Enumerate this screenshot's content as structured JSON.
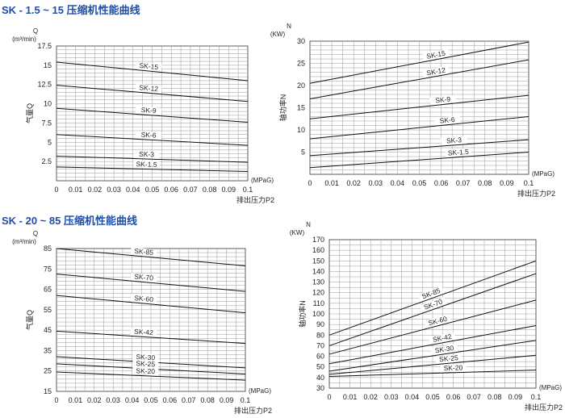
{
  "titles": {
    "top": "SK - 1.5 ~ 15 压缩机性能曲线",
    "bottom": "SK - 20 ~ 85 压缩机性能曲线"
  },
  "chart_data": [
    {
      "type": "line",
      "id": "q_small",
      "x_ticks": [
        "0",
        "0.01",
        "0.02",
        "0.03",
        "0.04",
        "0.05",
        "0.06",
        "0.07",
        "0.08",
        "0.09",
        "0.1"
      ],
      "y_ticks": [
        "2.5",
        "5",
        "7.5",
        "10",
        "12.5",
        "15",
        "17.5"
      ],
      "xlim": [
        0,
        0.1
      ],
      "ylim": [
        0,
        17.5
      ],
      "y_unit": "Q",
      "y_unit2": "(m³/min)",
      "ylabel": "气量Q",
      "x_unit": "(MPaG)",
      "xlabel": "排出压力P2",
      "grid": true,
      "series": [
        {
          "name": "SK-15",
          "x": [
            0,
            0.1
          ],
          "y": [
            15.4,
            13.0
          ],
          "label_at": 0.048
        },
        {
          "name": "SK-12",
          "x": [
            0,
            0.1
          ],
          "y": [
            12.4,
            10.3
          ],
          "label_at": 0.048
        },
        {
          "name": "SK-9",
          "x": [
            0,
            0.1
          ],
          "y": [
            9.4,
            7.6
          ],
          "label_at": 0.048
        },
        {
          "name": "SK-6",
          "x": [
            0,
            0.1
          ],
          "y": [
            6.0,
            4.6
          ],
          "label_at": 0.048
        },
        {
          "name": "SK-3",
          "x": [
            0,
            0.1
          ],
          "y": [
            3.2,
            2.4
          ],
          "label_at": 0.047
        },
        {
          "name": "SK-1.5",
          "x": [
            0,
            0.1
          ],
          "y": [
            1.8,
            1.2
          ],
          "label_at": 0.047
        }
      ]
    },
    {
      "type": "line",
      "id": "n_small",
      "x_ticks": [
        "0",
        "0.01",
        "0.02",
        "0.03",
        "0.04",
        "0.05",
        "0.06",
        "0.07",
        "0.08",
        "0.09",
        "0.1"
      ],
      "y_ticks": [
        "5",
        "10",
        "15",
        "20",
        "25",
        "30"
      ],
      "xlim": [
        0,
        0.1
      ],
      "ylim": [
        0,
        30
      ],
      "y_unit": "N",
      "y_unit2": "(KW)",
      "ylabel": "轴功率N",
      "x_unit": "(MPaG)",
      "xlabel": "排出压力P2",
      "grid": true,
      "series": [
        {
          "name": "SK-15",
          "x": [
            0,
            0.1
          ],
          "y": [
            20.5,
            29.8
          ],
          "label_at": 0.058
        },
        {
          "name": "SK-12",
          "x": [
            0,
            0.1
          ],
          "y": [
            17.0,
            25.8
          ],
          "label_at": 0.058
        },
        {
          "name": "SK-9",
          "x": [
            0,
            0.1
          ],
          "y": [
            12.5,
            17.8
          ],
          "label_at": 0.061
        },
        {
          "name": "SK-6",
          "x": [
            0,
            0.1
          ],
          "y": [
            8.0,
            13.0
          ],
          "label_at": 0.063
        },
        {
          "name": "SK-3",
          "x": [
            0,
            0.1
          ],
          "y": [
            4.2,
            7.8
          ],
          "label_at": 0.066
        },
        {
          "name": "SK-1.5",
          "x": [
            0,
            0.1
          ],
          "y": [
            1.5,
            5.0
          ],
          "label_at": 0.068
        }
      ]
    },
    {
      "type": "line",
      "id": "q_large",
      "x_ticks": [
        "0",
        "0.01",
        "0.02",
        "0.03",
        "0.04",
        "0.05",
        "0.06",
        "0.07",
        "0.08",
        "0.09",
        "0.1"
      ],
      "y_ticks": [
        "15",
        "25",
        "35",
        "45",
        "55",
        "65",
        "75",
        "85"
      ],
      "xlim": [
        0,
        0.1
      ],
      "ylim": [
        15,
        85
      ],
      "y_unit": "Q",
      "y_unit2": "(m³/min)",
      "ylabel": "气量Q",
      "x_unit": "(MPaG)",
      "xlabel": "排出压力P2",
      "grid": true,
      "series": [
        {
          "name": "SK-85",
          "x": [
            0,
            0.1
          ],
          "y": [
            85.0,
            76.5
          ],
          "label_at": 0.046
        },
        {
          "name": "SK-70",
          "x": [
            0,
            0.1
          ],
          "y": [
            72.5,
            64.0
          ],
          "label_at": 0.046
        },
        {
          "name": "SK-60",
          "x": [
            0,
            0.1
          ],
          "y": [
            62.0,
            53.5
          ],
          "label_at": 0.046
        },
        {
          "name": "SK-42",
          "x": [
            0,
            0.1
          ],
          "y": [
            44.5,
            38.5
          ],
          "label_at": 0.046
        },
        {
          "name": "SK-30",
          "x": [
            0,
            0.1
          ],
          "y": [
            32.0,
            26.5
          ],
          "label_at": 0.047
        },
        {
          "name": "SK-25",
          "x": [
            0,
            0.1
          ],
          "y": [
            28.5,
            23.5
          ],
          "label_at": 0.047
        },
        {
          "name": "SK-20",
          "x": [
            0,
            0.1
          ],
          "y": [
            24.5,
            20.5
          ],
          "label_at": 0.047
        }
      ]
    },
    {
      "type": "line",
      "id": "n_large",
      "x_ticks": [
        "0",
        "0.01",
        "0.02",
        "0.03",
        "0.04",
        "0.05",
        "0.06",
        "0.07",
        "0.08",
        "0.09",
        "0.1"
      ],
      "y_ticks": [
        "30",
        "40",
        "50",
        "60",
        "70",
        "80",
        "90",
        "100",
        "110",
        "120",
        "130",
        "140",
        "150",
        "160",
        "170"
      ],
      "xlim": [
        0,
        0.1
      ],
      "ylim": [
        30,
        170
      ],
      "y_unit": "N",
      "y_unit2": "(KW)",
      "ylabel": "轴功率N",
      "x_unit": "(MPaG)",
      "xlabel": "排出压力P2",
      "grid": true,
      "series": [
        {
          "name": "SK-85",
          "x": [
            0,
            0.1
          ],
          "y": [
            80.0,
            150.0
          ],
          "label_at": 0.05
        },
        {
          "name": "SK-70",
          "x": [
            0,
            0.1
          ],
          "y": [
            70.0,
            138.0
          ],
          "label_at": 0.051
        },
        {
          "name": "SK-60",
          "x": [
            0,
            0.1
          ],
          "y": [
            62.0,
            113.0
          ],
          "label_at": 0.053
        },
        {
          "name": "SK-42",
          "x": [
            0,
            0.1
          ],
          "y": [
            53.0,
            89.0
          ],
          "label_at": 0.055
        },
        {
          "name": "SK-30",
          "x": [
            0,
            0.1
          ],
          "y": [
            46.0,
            75.0
          ],
          "label_at": 0.056
        },
        {
          "name": "SK-25",
          "x": [
            0,
            0.1
          ],
          "y": [
            43.0,
            61.0
          ],
          "label_at": 0.058
        },
        {
          "name": "SK-20",
          "x": [
            0,
            0.1
          ],
          "y": [
            41.0,
            47.0
          ],
          "label_at": 0.06
        }
      ]
    }
  ]
}
